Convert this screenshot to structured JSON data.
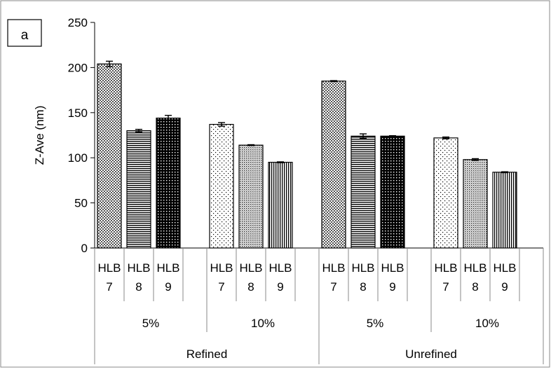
{
  "panel_label": "a",
  "chart_data": {
    "type": "bar",
    "ylabel": "Z-Ave (nm)",
    "ylim": [
      0,
      250
    ],
    "yticks": [
      0,
      50,
      100,
      150,
      200,
      250
    ],
    "grid": false,
    "legend": "none",
    "groups": [
      {
        "oil": "Refined",
        "conc": "5%",
        "bars": [
          {
            "line1": "HLB",
            "line2": "7",
            "value": 204,
            "error": 3,
            "pattern": "crosshatch"
          },
          {
            "line1": "HLB",
            "line2": "8",
            "value": 130,
            "error": 1.5,
            "pattern": "hstripe"
          },
          {
            "line1": "HLB",
            "line2": "9",
            "value": 144,
            "error": 3,
            "pattern": "darkdots"
          }
        ]
      },
      {
        "oil": "Refined",
        "conc": "10%",
        "bars": [
          {
            "line1": "HLB",
            "line2": "7",
            "value": 137,
            "error": 2,
            "pattern": "sparsedots"
          },
          {
            "line1": "HLB",
            "line2": "8",
            "value": 114,
            "error": 0.5,
            "pattern": "densedots"
          },
          {
            "line1": "HLB",
            "line2": "9",
            "value": 95,
            "error": 0.5,
            "pattern": "vstripe"
          }
        ]
      },
      {
        "oil": "Unrefined",
        "conc": "5%",
        "bars": [
          {
            "line1": "HLB",
            "line2": "7",
            "value": 185,
            "error": 0.5,
            "pattern": "crosshatch"
          },
          {
            "line1": "HLB",
            "line2": "8",
            "value": 124,
            "error": 2.5,
            "pattern": "hstripe"
          },
          {
            "line1": "HLB",
            "line2": "9",
            "value": 124,
            "error": 0.5,
            "pattern": "darkdots"
          }
        ]
      },
      {
        "oil": "Unrefined",
        "conc": "10%",
        "bars": [
          {
            "line1": "HLB",
            "line2": "7",
            "value": 122,
            "error": 1,
            "pattern": "sparsedots"
          },
          {
            "line1": "HLB",
            "line2": "8",
            "value": 98,
            "error": 1,
            "pattern": "densedots"
          },
          {
            "line1": "HLB",
            "line2": "9",
            "value": 84,
            "error": 0.5,
            "pattern": "vstripe"
          }
        ]
      }
    ],
    "outer_labels": [
      "Refined",
      "Unrefined"
    ]
  }
}
